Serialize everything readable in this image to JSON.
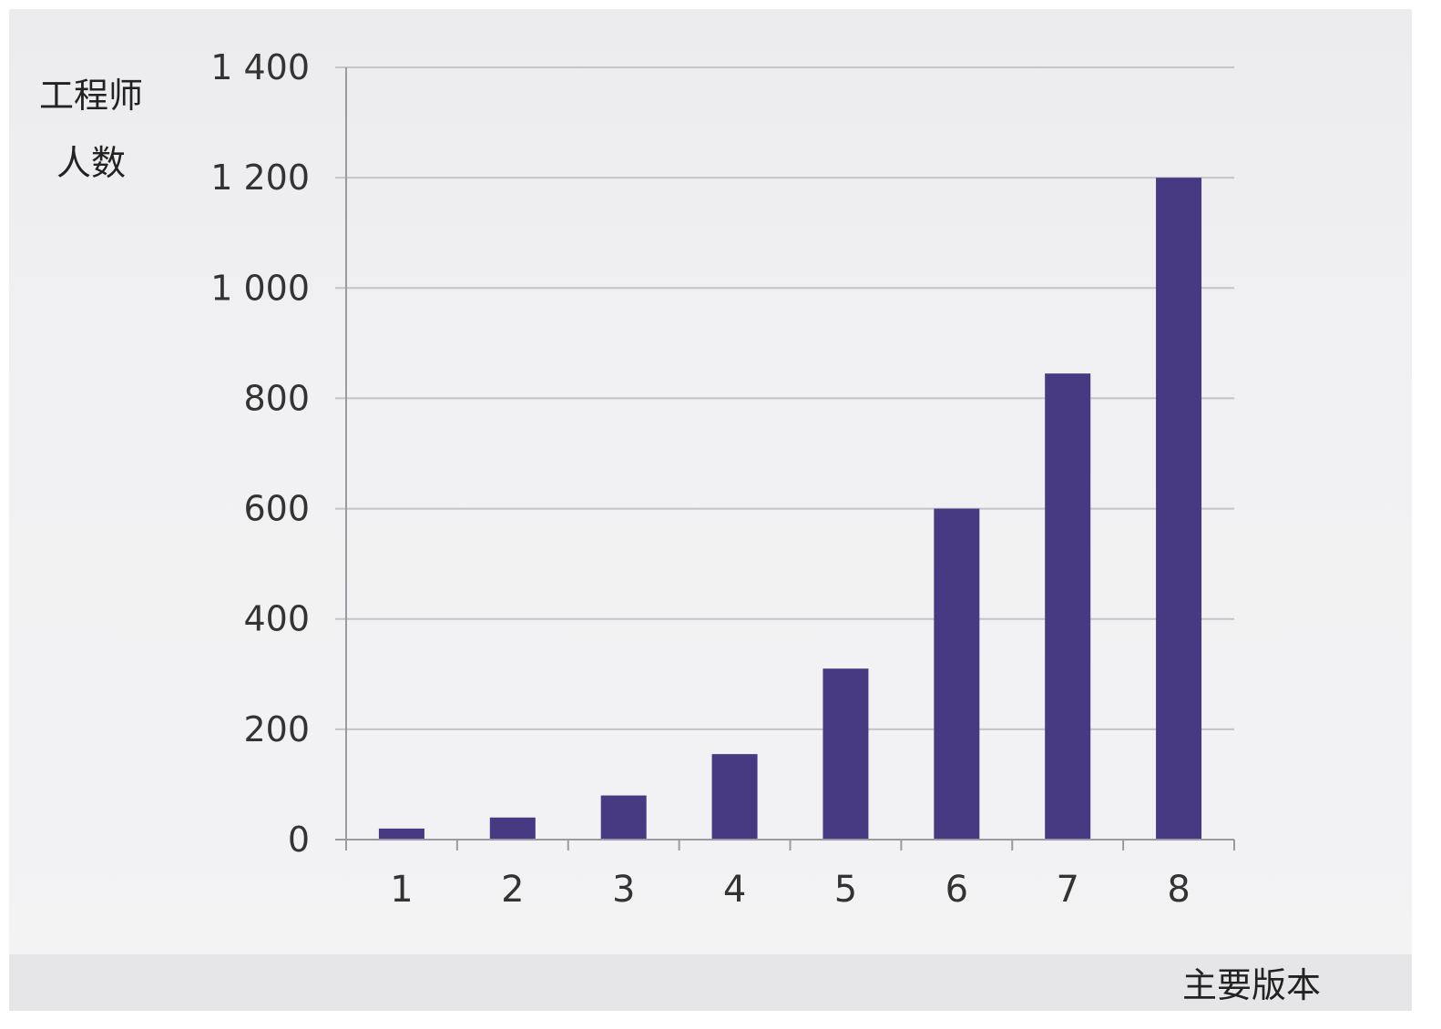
{
  "chart_data": {
    "type": "bar",
    "title": "",
    "ylabel_lines": [
      "工程师",
      "人数"
    ],
    "xlabel": "主要版本",
    "categories": [
      "1",
      "2",
      "3",
      "4",
      "5",
      "6",
      "7",
      "8"
    ],
    "values": [
      20,
      40,
      80,
      155,
      310,
      600,
      845,
      1200
    ],
    "ylim": [
      0,
      1400
    ],
    "yticks": [
      0,
      200,
      400,
      600,
      800,
      1000,
      1200,
      1400
    ],
    "ytick_labels": [
      "0",
      "200",
      "400",
      "600",
      "800",
      "1 000",
      "1 200",
      "1 400"
    ],
    "grid": true,
    "bar_color": "#473a82",
    "grid_color": "#c4c4c8",
    "axis_color": "#9a9aa0"
  }
}
